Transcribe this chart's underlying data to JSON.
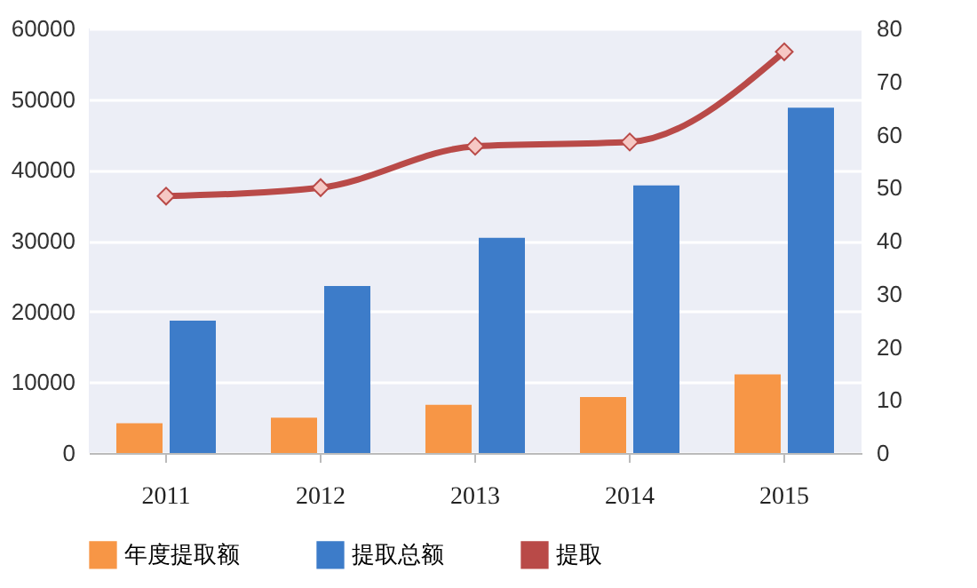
{
  "chart_data": {
    "type": "bar",
    "categories": [
      "2011",
      "2012",
      "2013",
      "2014",
      "2015"
    ],
    "series": [
      {
        "name": "年度提取额",
        "color": "#f79646",
        "values": [
          4200,
          5000,
          6800,
          7900,
          11100
        ]
      },
      {
        "name": "提取总额",
        "color": "#3d7cc9",
        "values": [
          18700,
          23600,
          30400,
          37800,
          48800
        ]
      },
      {
        "name": "提取",
        "color": "#b94a48",
        "type": "line",
        "axis": "y2",
        "values": [
          48.4,
          50.0,
          57.8,
          58.6,
          75.6
        ]
      }
    ],
    "ylim": [
      0,
      60000
    ],
    "yticks": [
      0,
      10000,
      20000,
      30000,
      40000,
      50000,
      60000
    ],
    "y2lim": [
      0,
      80
    ],
    "y2ticks": [
      0,
      10,
      20,
      30,
      40,
      50,
      60,
      70,
      80
    ],
    "grid": "y",
    "legend": "bottom",
    "marker": "diamond",
    "line_style": "solid"
  }
}
